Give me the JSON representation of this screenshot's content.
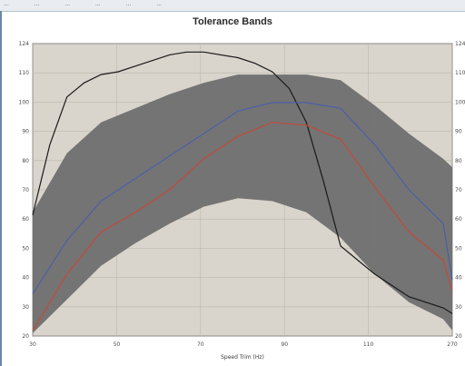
{
  "window": {
    "header_cells": [
      "...",
      "...",
      "...",
      "...",
      "...",
      "..."
    ]
  },
  "chart_data": {
    "type": "line",
    "title": "Tolerance Bands",
    "xlabel": "Speed Trim (Hz)",
    "ylabel": "",
    "xlim": [
      30,
      270
    ],
    "ylim": [
      20,
      124
    ],
    "x_ticks": [
      "30",
      "50",
      "70",
      "90",
      "110",
      "270"
    ],
    "y_ticks": [
      "20",
      "30",
      "40",
      "50",
      "60",
      "70",
      "80",
      "90",
      "100",
      "110",
      "124"
    ],
    "right_y_ticks": [
      "20",
      "30",
      "40",
      "50",
      "60",
      "70",
      "80",
      "90",
      "100",
      "110",
      "124"
    ],
    "grid": true,
    "colors": {
      "band": "#6f6f6f",
      "plot_bg": "#d9d4cc",
      "black": "#1a1a1a",
      "blue": "#4b5fa8",
      "red": "#c24a3a"
    },
    "band": {
      "x": [
        30,
        40,
        50,
        60,
        70,
        80,
        90,
        100,
        110,
        120,
        130,
        140,
        150,
        270
      ],
      "upper": [
        64,
        85,
        96,
        101,
        106,
        110,
        113,
        113,
        113,
        111,
        102,
        92,
        83,
        80
      ],
      "lower": [
        21,
        33,
        45,
        53,
        60,
        66,
        69,
        68,
        64,
        55,
        42,
        32,
        26,
        22
      ]
    },
    "series": [
      {
        "color": "#1a1a1a",
        "x": [
          30,
          35,
          40,
          45,
          50,
          55,
          60,
          70,
          75,
          80,
          90,
          95,
          100,
          105,
          110,
          115,
          120,
          130,
          140,
          150,
          270
        ],
        "values": [
          63,
          88,
          105,
          110,
          113,
          114,
          116,
          120,
          121,
          121,
          119,
          117,
          114,
          108,
          96,
          75,
          52,
          42,
          34,
          30,
          28
        ]
      },
      {
        "color": "#4b5fa8",
        "x": [
          30,
          40,
          50,
          60,
          70,
          80,
          90,
          100,
          110,
          120,
          130,
          140,
          150,
          270
        ],
        "values": [
          35,
          54,
          68,
          76,
          84,
          92,
          100,
          103,
          103,
          101,
          88,
          72,
          60,
          40
        ]
      },
      {
        "color": "#c24a3a",
        "x": [
          30,
          40,
          50,
          60,
          70,
          80,
          90,
          100,
          110,
          120,
          130,
          140,
          150,
          270
        ],
        "values": [
          22,
          42,
          57,
          64,
          72,
          83,
          91,
          96,
          95,
          90,
          73,
          57,
          47,
          36
        ]
      }
    ]
  }
}
